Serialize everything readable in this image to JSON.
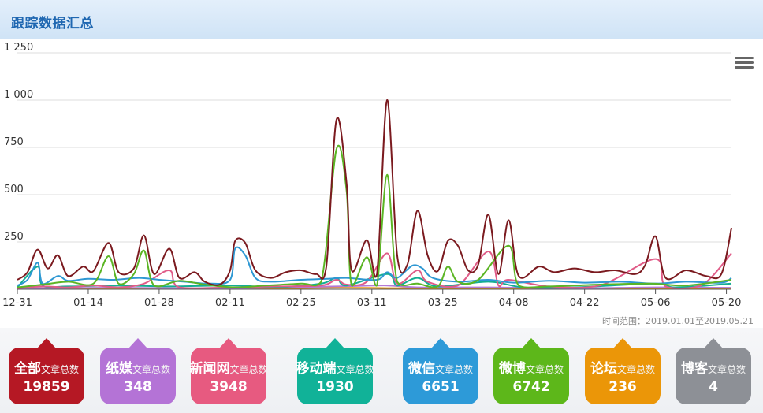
{
  "header": {
    "title": "跟踪数据汇总"
  },
  "range_text": "时间范围：2019.01.01至2019.05.21",
  "card_suffix": "文章总数",
  "cards": [
    {
      "name": "全部",
      "count": "19859",
      "color": "#b51824"
    },
    {
      "name": "纸媒",
      "count": "348",
      "color": "#b473d6"
    },
    {
      "name": "新闻网",
      "count": "3948",
      "color": "#e75a80"
    },
    {
      "name": "移动端",
      "count": "1930",
      "color": "#11b298"
    },
    {
      "name": "微信",
      "count": "6651",
      "color": "#2d9ad8"
    },
    {
      "name": "微博",
      "count": "6742",
      "color": "#5db71a"
    },
    {
      "name": "论坛",
      "count": "236",
      "color": "#eb9608"
    },
    {
      "name": "博客",
      "count": "4",
      "color": "#8d9096"
    }
  ],
  "chart_data": {
    "type": "line",
    "ylim": [
      0,
      1250
    ],
    "y_ticks": [
      "0",
      "250",
      "500",
      "750",
      "1 000",
      "1 250"
    ],
    "y_tick_values": [
      0,
      250,
      500,
      750,
      1000,
      1250
    ],
    "x_start": "2018-12-31",
    "x_end": "2019-05-21",
    "x_ticks": [
      {
        "label": "12-31",
        "date": "2018-12-31"
      },
      {
        "label": "01-14",
        "date": "2019-01-14"
      },
      {
        "label": "01-28",
        "date": "2019-01-28"
      },
      {
        "label": "02-11",
        "date": "2019-02-11"
      },
      {
        "label": "02-25",
        "date": "2019-02-25"
      },
      {
        "label": "03-11",
        "date": "2019-03-11"
      },
      {
        "label": "03-25",
        "date": "2019-03-25"
      },
      {
        "label": "04-08",
        "date": "2019-04-08"
      },
      {
        "label": "04-22",
        "date": "2019-04-22"
      },
      {
        "label": "05-06",
        "date": "2019-05-06"
      },
      {
        "label": "05-20",
        "date": "2019-05-20"
      }
    ],
    "grid": true,
    "series": [
      {
        "color": "#7b1a1f",
        "points": [
          [
            "2018-12-31",
            50
          ],
          [
            "2019-01-02",
            90
          ],
          [
            "2019-01-04",
            210
          ],
          [
            "2019-01-06",
            110
          ],
          [
            "2019-01-08",
            180
          ],
          [
            "2019-01-10",
            70
          ],
          [
            "2019-01-13",
            120
          ],
          [
            "2019-01-15",
            95
          ],
          [
            "2019-01-18",
            245
          ],
          [
            "2019-01-20",
            90
          ],
          [
            "2019-01-23",
            110
          ],
          [
            "2019-01-25",
            285
          ],
          [
            "2019-01-27",
            80
          ],
          [
            "2019-01-30",
            215
          ],
          [
            "2019-02-01",
            60
          ],
          [
            "2019-02-04",
            90
          ],
          [
            "2019-02-06",
            40
          ],
          [
            "2019-02-09",
            25
          ],
          [
            "2019-02-11",
            100
          ],
          [
            "2019-02-12",
            255
          ],
          [
            "2019-02-14",
            245
          ],
          [
            "2019-02-16",
            100
          ],
          [
            "2019-02-19",
            60
          ],
          [
            "2019-02-22",
            90
          ],
          [
            "2019-02-25",
            100
          ],
          [
            "2019-02-28",
            80
          ],
          [
            "2019-03-02",
            120
          ],
          [
            "2019-03-04",
            895
          ],
          [
            "2019-03-06",
            560
          ],
          [
            "2019-03-07",
            100
          ],
          [
            "2019-03-10",
            260
          ],
          [
            "2019-03-12",
            80
          ],
          [
            "2019-03-14",
            1000
          ],
          [
            "2019-03-16",
            180
          ],
          [
            "2019-03-18",
            130
          ],
          [
            "2019-03-20",
            415
          ],
          [
            "2019-03-22",
            180
          ],
          [
            "2019-03-24",
            95
          ],
          [
            "2019-03-26",
            255
          ],
          [
            "2019-03-28",
            230
          ],
          [
            "2019-03-30",
            100
          ],
          [
            "2019-04-01",
            130
          ],
          [
            "2019-04-03",
            395
          ],
          [
            "2019-04-05",
            80
          ],
          [
            "2019-04-07",
            365
          ],
          [
            "2019-04-09",
            70
          ],
          [
            "2019-04-13",
            120
          ],
          [
            "2019-04-16",
            90
          ],
          [
            "2019-04-20",
            110
          ],
          [
            "2019-04-24",
            90
          ],
          [
            "2019-04-28",
            100
          ],
          [
            "2019-05-02",
            80
          ],
          [
            "2019-05-04",
            130
          ],
          [
            "2019-05-06",
            280
          ],
          [
            "2019-05-08",
            60
          ],
          [
            "2019-05-12",
            100
          ],
          [
            "2019-05-16",
            70
          ],
          [
            "2019-05-19",
            80
          ],
          [
            "2019-05-21",
            325
          ]
        ]
      },
      {
        "color": "#5bb524",
        "points": [
          [
            "2018-12-31",
            10
          ],
          [
            "2019-01-05",
            25
          ],
          [
            "2019-01-10",
            40
          ],
          [
            "2019-01-15",
            30
          ],
          [
            "2019-01-18",
            175
          ],
          [
            "2019-01-20",
            30
          ],
          [
            "2019-01-23",
            80
          ],
          [
            "2019-01-25",
            205
          ],
          [
            "2019-01-27",
            20
          ],
          [
            "2019-02-01",
            45
          ],
          [
            "2019-02-06",
            25
          ],
          [
            "2019-02-12",
            10
          ],
          [
            "2019-02-18",
            20
          ],
          [
            "2019-02-25",
            30
          ],
          [
            "2019-03-01",
            40
          ],
          [
            "2019-03-04",
            740
          ],
          [
            "2019-03-06",
            520
          ],
          [
            "2019-03-07",
            20
          ],
          [
            "2019-03-10",
            170
          ],
          [
            "2019-03-12",
            20
          ],
          [
            "2019-03-14",
            605
          ],
          [
            "2019-03-16",
            40
          ],
          [
            "2019-03-20",
            30
          ],
          [
            "2019-03-24",
            15
          ],
          [
            "2019-03-26",
            120
          ],
          [
            "2019-03-28",
            40
          ],
          [
            "2019-04-01",
            50
          ],
          [
            "2019-04-07",
            230
          ],
          [
            "2019-04-09",
            20
          ],
          [
            "2019-04-15",
            15
          ],
          [
            "2019-04-25",
            25
          ],
          [
            "2019-05-05",
            30
          ],
          [
            "2019-05-12",
            20
          ],
          [
            "2019-05-21",
            50
          ]
        ]
      },
      {
        "color": "#2e98d3",
        "points": [
          [
            "2018-12-31",
            20
          ],
          [
            "2019-01-02",
            50
          ],
          [
            "2019-01-04",
            140
          ],
          [
            "2019-01-05",
            30
          ],
          [
            "2019-01-08",
            70
          ],
          [
            "2019-01-10",
            45
          ],
          [
            "2019-01-14",
            55
          ],
          [
            "2019-01-19",
            50
          ],
          [
            "2019-01-24",
            60
          ],
          [
            "2019-01-28",
            50
          ],
          [
            "2019-02-02",
            40
          ],
          [
            "2019-02-07",
            30
          ],
          [
            "2019-02-11",
            50
          ],
          [
            "2019-02-12",
            215
          ],
          [
            "2019-02-14",
            180
          ],
          [
            "2019-02-16",
            60
          ],
          [
            "2019-02-19",
            40
          ],
          [
            "2019-02-25",
            50
          ],
          [
            "2019-03-02",
            55
          ],
          [
            "2019-03-06",
            60
          ],
          [
            "2019-03-12",
            50
          ],
          [
            "2019-03-14",
            90
          ],
          [
            "2019-03-16",
            60
          ],
          [
            "2019-03-19",
            125
          ],
          [
            "2019-03-21",
            110
          ],
          [
            "2019-03-23",
            60
          ],
          [
            "2019-03-28",
            40
          ],
          [
            "2019-04-03",
            50
          ],
          [
            "2019-04-08",
            35
          ],
          [
            "2019-04-15",
            45
          ],
          [
            "2019-04-22",
            35
          ],
          [
            "2019-04-29",
            40
          ],
          [
            "2019-05-06",
            30
          ],
          [
            "2019-05-12",
            40
          ],
          [
            "2019-05-19",
            35
          ],
          [
            "2019-05-21",
            60
          ]
        ]
      },
      {
        "color": "#e05c88",
        "points": [
          [
            "2018-12-31",
            5
          ],
          [
            "2019-01-05",
            15
          ],
          [
            "2019-01-10",
            10
          ],
          [
            "2019-01-15",
            20
          ],
          [
            "2019-01-20",
            10
          ],
          [
            "2019-01-25",
            30
          ],
          [
            "2019-01-30",
            100
          ],
          [
            "2019-02-01",
            10
          ],
          [
            "2019-02-11",
            10
          ],
          [
            "2019-02-20",
            15
          ],
          [
            "2019-03-01",
            20
          ],
          [
            "2019-03-04",
            50
          ],
          [
            "2019-03-06",
            25
          ],
          [
            "2019-03-10",
            40
          ],
          [
            "2019-03-14",
            190
          ],
          [
            "2019-03-16",
            30
          ],
          [
            "2019-03-20",
            100
          ],
          [
            "2019-03-22",
            40
          ],
          [
            "2019-03-28",
            20
          ],
          [
            "2019-04-03",
            200
          ],
          [
            "2019-04-05",
            20
          ],
          [
            "2019-04-07",
            50
          ],
          [
            "2019-04-15",
            15
          ],
          [
            "2019-04-25",
            20
          ],
          [
            "2019-05-06",
            160
          ],
          [
            "2019-05-08",
            15
          ],
          [
            "2019-05-15",
            20
          ],
          [
            "2019-05-21",
            190
          ]
        ]
      },
      {
        "color": "#14ad94",
        "points": [
          [
            "2018-12-31",
            10
          ],
          [
            "2019-01-04",
            120
          ],
          [
            "2019-01-05",
            20
          ],
          [
            "2019-01-10",
            15
          ],
          [
            "2019-01-20",
            20
          ],
          [
            "2019-01-30",
            15
          ],
          [
            "2019-02-12",
            20
          ],
          [
            "2019-02-20",
            10
          ],
          [
            "2019-03-01",
            30
          ],
          [
            "2019-03-04",
            60
          ],
          [
            "2019-03-06",
            20
          ],
          [
            "2019-03-14",
            80
          ],
          [
            "2019-03-16",
            20
          ],
          [
            "2019-03-20",
            60
          ],
          [
            "2019-03-24",
            15
          ],
          [
            "2019-04-03",
            40
          ],
          [
            "2019-04-10",
            10
          ],
          [
            "2019-04-20",
            10
          ],
          [
            "2019-05-06",
            30
          ],
          [
            "2019-05-10",
            10
          ],
          [
            "2019-05-21",
            30
          ]
        ]
      },
      {
        "color": "#b47ad5",
        "points": [
          [
            "2018-12-31",
            5
          ],
          [
            "2019-01-20",
            8
          ],
          [
            "2019-02-10",
            5
          ],
          [
            "2019-03-04",
            15
          ],
          [
            "2019-03-14",
            20
          ],
          [
            "2019-03-20",
            10
          ],
          [
            "2019-04-03",
            10
          ],
          [
            "2019-04-20",
            5
          ],
          [
            "2019-05-06",
            10
          ],
          [
            "2019-05-21",
            8
          ]
        ]
      },
      {
        "color": "#ec9a10",
        "points": [
          [
            "2018-12-31",
            2
          ],
          [
            "2019-01-20",
            5
          ],
          [
            "2019-02-10",
            3
          ],
          [
            "2019-03-04",
            8
          ],
          [
            "2019-03-14",
            6
          ],
          [
            "2019-04-03",
            5
          ],
          [
            "2019-04-20",
            3
          ],
          [
            "2019-05-06",
            5
          ],
          [
            "2019-05-21",
            4
          ]
        ]
      }
    ]
  }
}
